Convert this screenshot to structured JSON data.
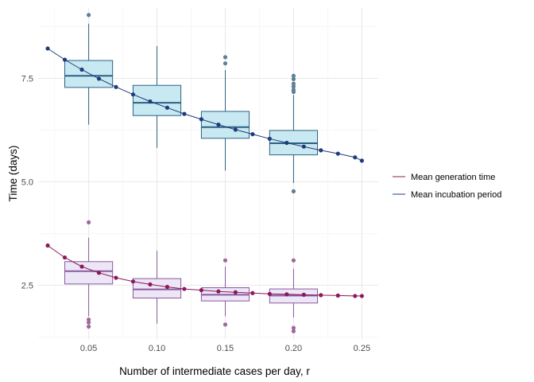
{
  "chart_data": {
    "type": "box-with-line",
    "xlabel": "Number of intermediate cases per day, r",
    "ylabel": "Time (days)",
    "xlim": [
      0.013,
      0.262
    ],
    "ylim": [
      1.2,
      9.2
    ],
    "x_ticks": [
      0.05,
      0.1,
      0.15,
      0.2,
      0.25
    ],
    "x_tick_labels": [
      "0.05",
      "0.10",
      "0.15",
      "0.20",
      "0.25"
    ],
    "y_ticks": [
      2.5,
      5.0,
      7.5
    ],
    "y_tick_labels": [
      "2.5",
      "5.0",
      "7.5"
    ],
    "grid": true,
    "legend_position": "right",
    "series": [
      {
        "name": "Mean generation time",
        "color": "#8b1a5c",
        "box_fill": "#ece6f7",
        "box_stroke": "#8a5a9c",
        "outlier_color": "#a0679b",
        "line_points": {
          "x": [
            0.02,
            0.0325,
            0.045,
            0.0575,
            0.07,
            0.0825,
            0.095,
            0.1075,
            0.12,
            0.1325,
            0.145,
            0.1575,
            0.17,
            0.1825,
            0.195,
            0.2075,
            0.22,
            0.2325,
            0.245,
            0.25
          ],
          "y": [
            3.46,
            3.17,
            2.95,
            2.8,
            2.68,
            2.59,
            2.52,
            2.46,
            2.41,
            2.38,
            2.35,
            2.33,
            2.31,
            2.29,
            2.28,
            2.27,
            2.26,
            2.25,
            2.24,
            2.24
          ]
        },
        "boxes": [
          {
            "x": 0.05,
            "whisker_low": 1.75,
            "q1": 2.53,
            "median": 2.84,
            "q3": 3.07,
            "whisker_high": 3.65,
            "outliers": [
              1.5,
              1.6,
              1.67,
              4.02
            ]
          },
          {
            "x": 0.1,
            "whisker_low": 1.57,
            "q1": 2.19,
            "median": 2.4,
            "q3": 2.66,
            "whisker_high": 3.33,
            "outliers": []
          },
          {
            "x": 0.15,
            "whisker_low": 1.75,
            "q1": 2.12,
            "median": 2.27,
            "q3": 2.44,
            "whisker_high": 2.95,
            "outliers": [
              1.55,
              3.1
            ]
          },
          {
            "x": 0.2,
            "whisker_low": 1.72,
            "q1": 2.07,
            "median": 2.25,
            "q3": 2.41,
            "whisker_high": 2.9,
            "outliers": [
              1.39,
              1.47,
              3.1
            ]
          }
        ]
      },
      {
        "name": "Mean incubation period",
        "color": "#1f3c7a",
        "box_fill": "#c8e8f2",
        "box_stroke": "#2b6282",
        "outlier_color": "#5f7f94",
        "line_points": {
          "x": [
            0.02,
            0.0325,
            0.045,
            0.0575,
            0.07,
            0.0825,
            0.095,
            0.1075,
            0.12,
            0.1325,
            0.145,
            0.1575,
            0.17,
            0.1825,
            0.195,
            0.2075,
            0.22,
            0.2325,
            0.245,
            0.25
          ],
          "y": [
            8.22,
            7.95,
            7.71,
            7.49,
            7.29,
            7.11,
            6.94,
            6.79,
            6.64,
            6.51,
            6.38,
            6.26,
            6.15,
            6.04,
            5.94,
            5.85,
            5.76,
            5.68,
            5.59,
            5.51
          ]
        },
        "boxes": [
          {
            "x": 0.05,
            "whisker_low": 6.38,
            "q1": 7.28,
            "median": 7.56,
            "q3": 7.93,
            "whisker_high": 8.82,
            "outliers": [
              9.03
            ]
          },
          {
            "x": 0.1,
            "whisker_low": 5.82,
            "q1": 6.6,
            "median": 6.91,
            "q3": 7.33,
            "whisker_high": 8.28,
            "outliers": []
          },
          {
            "x": 0.15,
            "whisker_low": 5.27,
            "q1": 6.05,
            "median": 6.32,
            "q3": 6.7,
            "whisker_high": 7.7,
            "outliers": [
              7.86,
              8.01
            ]
          },
          {
            "x": 0.2,
            "whisker_low": 4.97,
            "q1": 5.65,
            "median": 5.93,
            "q3": 6.24,
            "whisker_high": 7.1,
            "outliers": [
              4.77,
              7.17,
              7.22,
              7.3,
              7.37,
              7.48,
              7.56
            ]
          }
        ]
      }
    ],
    "legend": [
      {
        "label": "Mean generation time",
        "color": "#8b1a5c"
      },
      {
        "label": "Mean incubation period",
        "color": "#1f3c7a"
      }
    ]
  }
}
